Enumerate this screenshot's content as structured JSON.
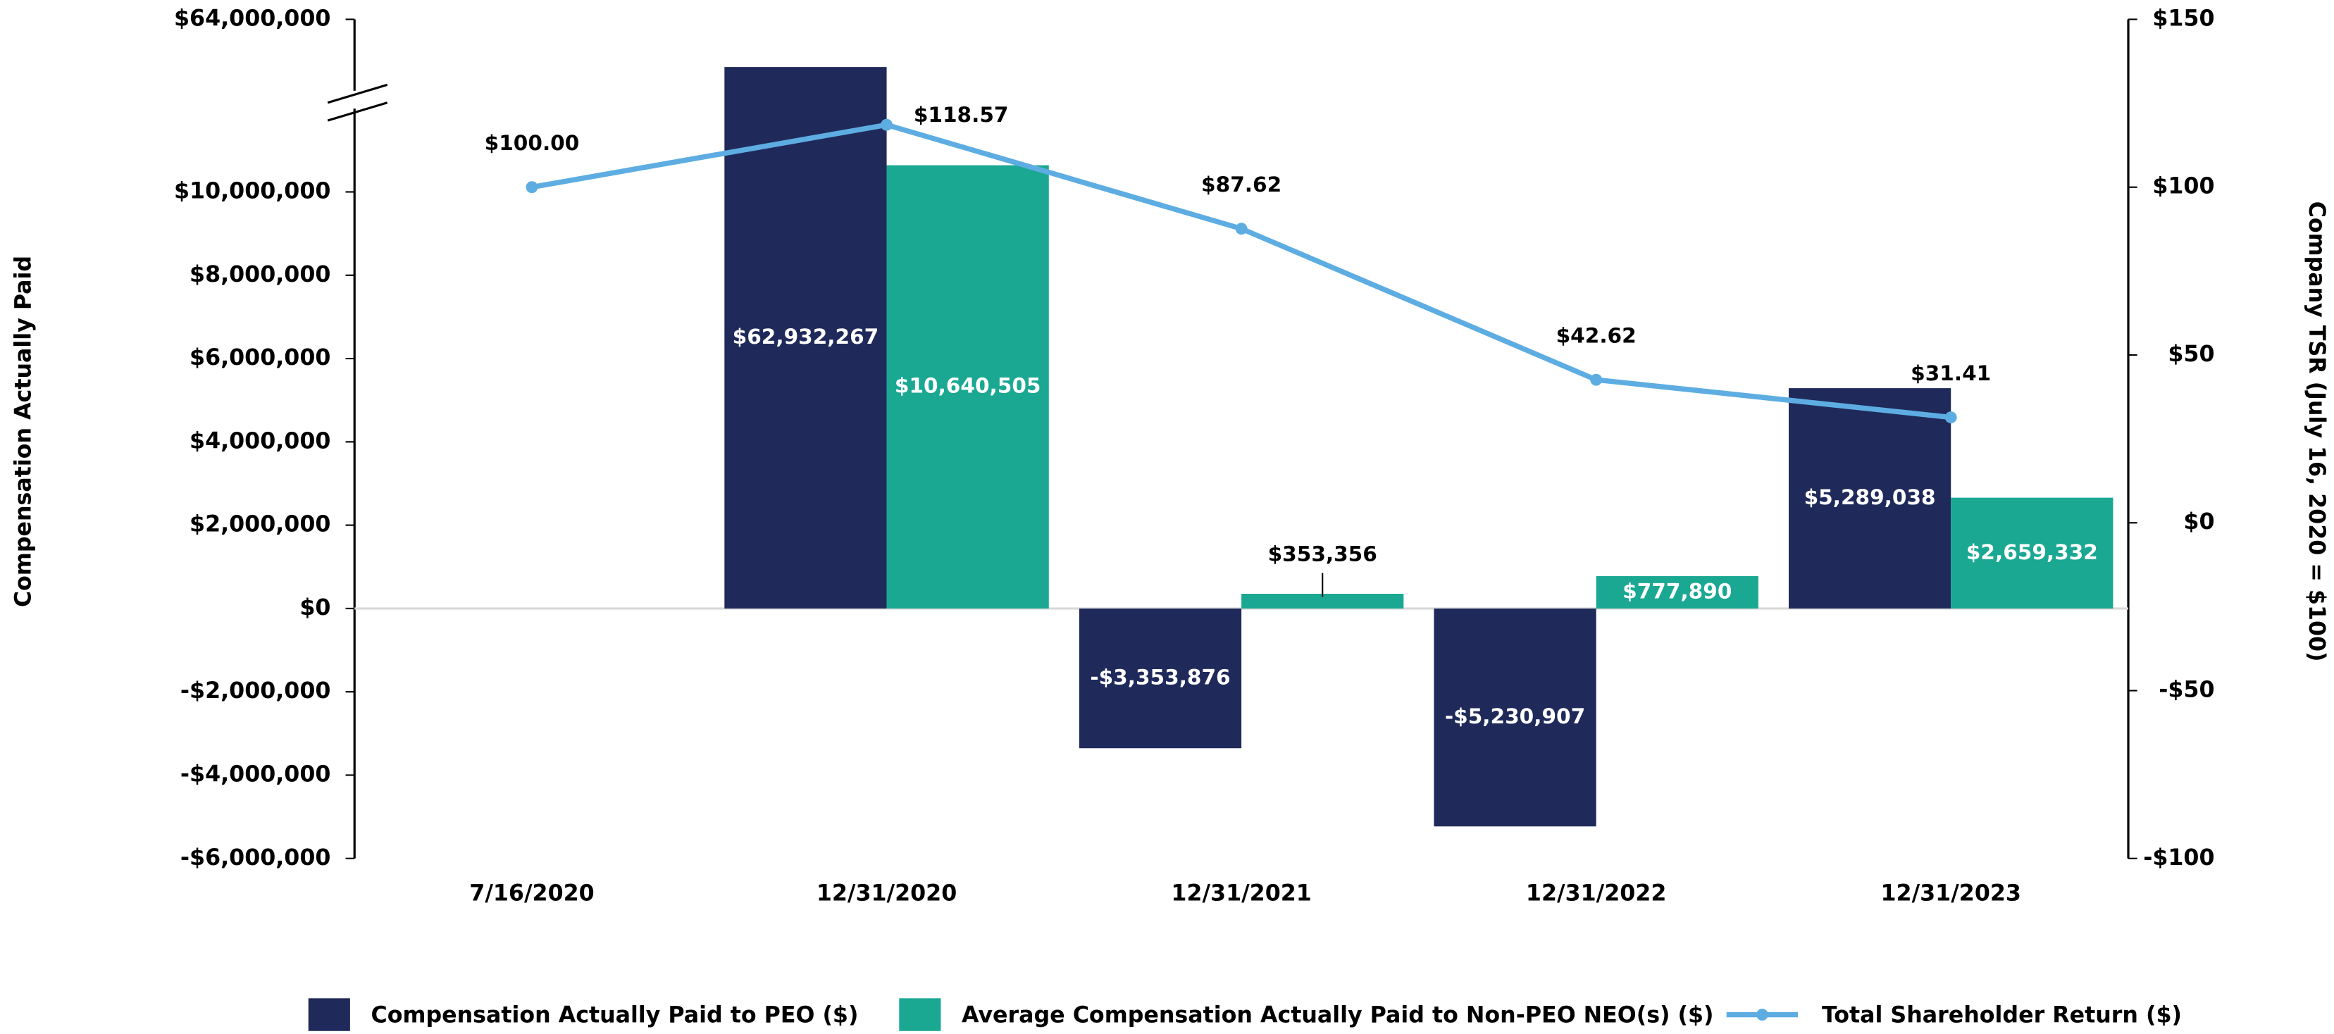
{
  "chart_data": {
    "type": "bar",
    "y_label": "Compensation Actually Paid",
    "y2_label": "Company TSR (July 16, 2020 = $100)",
    "categories": [
      "7/16/2020",
      "12/31/2020",
      "12/31/2021",
      "12/31/2022",
      "12/31/2023"
    ],
    "ylim": [
      -6000000,
      64000000
    ],
    "y_break": [
      12000000,
      62000000
    ],
    "yticks": [
      {
        "value": -6000000,
        "label": "-$6,000,000"
      },
      {
        "value": -4000000,
        "label": "-$4,000,000"
      },
      {
        "value": -2000000,
        "label": "-$2,000,000"
      },
      {
        "value": 0,
        "label": "$0"
      },
      {
        "value": 2000000,
        "label": "$2,000,000"
      },
      {
        "value": 4000000,
        "label": "$4,000,000"
      },
      {
        "value": 6000000,
        "label": "$6,000,000"
      },
      {
        "value": 8000000,
        "label": "$8,000,000"
      },
      {
        "value": 10000000,
        "label": "$10,000,000"
      },
      {
        "value": 64000000,
        "label": "$64,000,000"
      }
    ],
    "y2lim": [
      -100,
      150
    ],
    "y2ticks": [
      {
        "value": -100,
        "label": "-$100"
      },
      {
        "value": -50,
        "label": "-$50"
      },
      {
        "value": 0,
        "label": "$0"
      },
      {
        "value": 50,
        "label": "$50"
      },
      {
        "value": 100,
        "label": "$100"
      },
      {
        "value": 150,
        "label": "$150"
      }
    ],
    "grid": false,
    "legend": "bottom",
    "series": [
      {
        "name": "Compensation Actually Paid to PEO ($)",
        "type": "bar",
        "color": "#1f2a5a",
        "values": [
          null,
          62932267,
          -3353876,
          -5230907,
          5289038
        ],
        "value_labels": [
          null,
          "$62,932,267",
          "-$3,353,876",
          "-$5,230,907",
          "$5,289,038"
        ]
      },
      {
        "name": "Average Compensation Actually Paid to Non-PEO NEO(s) ($)",
        "type": "bar",
        "color": "#1aa893",
        "values": [
          null,
          10640505,
          353356,
          777890,
          2659332
        ],
        "value_labels": [
          null,
          "$10,640,505",
          "$353,356",
          "$777,890",
          "$2,659,332"
        ]
      },
      {
        "name": "Total Shareholder Return ($)",
        "type": "line",
        "axis": "y2",
        "color": "#5dade2",
        "values": [
          100.0,
          118.57,
          87.62,
          42.62,
          31.41
        ],
        "value_labels": [
          "$100.00",
          "$118.57",
          "$87.62",
          "$42.62",
          "$31.41"
        ]
      }
    ]
  }
}
